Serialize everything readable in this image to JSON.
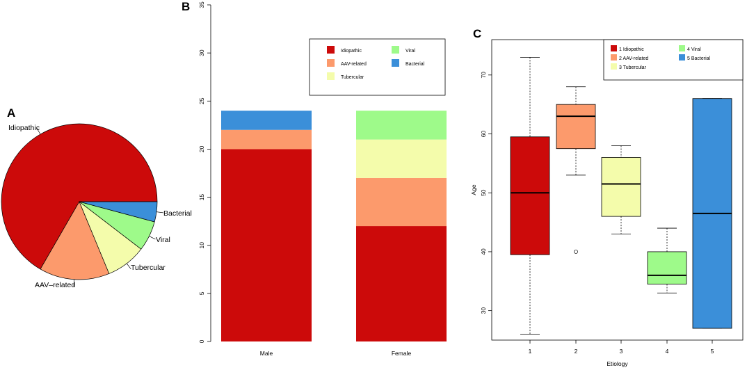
{
  "chart_data": [
    {
      "panel": "A",
      "type": "pie",
      "labels": [
        "Idiopathic",
        "AAV–related",
        "Tubercular",
        "Viral",
        "Bacterial"
      ],
      "values": [
        32,
        7,
        4,
        3,
        2
      ],
      "colors": [
        "#cc0a0a",
        "#fc9a6c",
        "#f4fcab",
        "#9efa8a",
        "#3b8fd9"
      ]
    },
    {
      "panel": "B",
      "type": "bar",
      "stacked": true,
      "categories": [
        "Male",
        "Female"
      ],
      "series": [
        {
          "name": "Idiopathic",
          "values": [
            20,
            12
          ],
          "color": "#cc0a0a"
        },
        {
          "name": "AAV-related",
          "values": [
            2,
            5
          ],
          "color": "#fc9a6c"
        },
        {
          "name": "Tubercular",
          "values": [
            0,
            4
          ],
          "color": "#f4fcab"
        },
        {
          "name": "Viral",
          "values": [
            0,
            3
          ],
          "color": "#9efa8a"
        },
        {
          "name": "Bacterial",
          "values": [
            2,
            0
          ],
          "color": "#3b8fd9"
        }
      ],
      "ylim": [
        0,
        35
      ],
      "yticks": [
        "0",
        "5",
        "10",
        "15",
        "20",
        "25",
        "30",
        "35"
      ],
      "legend": [
        "Idiopathic",
        "Viral",
        "AAV-related",
        "Bacterial",
        "Tubercular"
      ],
      "legend_position": "top-right"
    },
    {
      "panel": "C",
      "type": "box",
      "xlabel": "Etiology",
      "ylabel": "Age",
      "categories": [
        "1",
        "2",
        "3",
        "4",
        "5"
      ],
      "ylim": [
        25,
        76
      ],
      "yticks": [
        "30",
        "40",
        "50",
        "60",
        "70"
      ],
      "boxes": [
        {
          "whisker_low": 26,
          "q1": 39.5,
          "median": 50,
          "q3": 59.5,
          "whisker_high": 73,
          "outliers": [],
          "color": "#cc0a0a"
        },
        {
          "whisker_low": 53,
          "q1": 57.5,
          "median": 63,
          "q3": 65,
          "whisker_high": 68,
          "outliers": [
            40
          ],
          "color": "#fc9a6c"
        },
        {
          "whisker_low": 43,
          "q1": 46,
          "median": 51.5,
          "q3": 56,
          "whisker_high": 58,
          "outliers": [],
          "color": "#f4fcab"
        },
        {
          "whisker_low": 33,
          "q1": 34.5,
          "median": 36,
          "q3": 40,
          "whisker_high": 44,
          "outliers": [],
          "color": "#9efa8a"
        },
        {
          "whisker_low": 27,
          "q1": 27,
          "median": 46.5,
          "q3": 66,
          "whisker_high": 66,
          "outliers": [],
          "color": "#3b8fd9"
        }
      ],
      "legend": [
        "1 Idiopathic",
        "4 Viral",
        "2 AAV-related",
        "5 Bacterial",
        "3 Tubercular"
      ],
      "legend_position": "top-right"
    }
  ]
}
